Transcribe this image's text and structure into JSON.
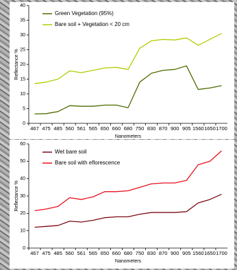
{
  "chart_data": [
    {
      "type": "line",
      "x_label": "Nanometers",
      "y_label": "Reflectance %",
      "categories": [
        "467",
        "475",
        "485",
        "560",
        "561",
        "565",
        "650",
        "660",
        "680",
        "750",
        "830",
        "870",
        "900",
        "905",
        "1560",
        "1650",
        "1700"
      ],
      "ylim": [
        0,
        40
      ],
      "yticks": [
        0,
        5,
        10,
        15,
        20,
        25,
        30,
        35,
        40
      ],
      "legend": "upper-left",
      "series": [
        {
          "name": "Green Vegetation (95%)",
          "color": "#4d6b00",
          "values": [
            3.2,
            3.3,
            4,
            6,
            5.8,
            5.8,
            6.2,
            6.2,
            5.3,
            14,
            17,
            18,
            18.3,
            19.5,
            11.5,
            12,
            12.8
          ]
        },
        {
          "name": "Bare soil + Vegetation < 20 cm",
          "color": "#b5cc00",
          "values": [
            13.5,
            14,
            15,
            17.8,
            17.2,
            18,
            18.8,
            19,
            18.3,
            25.5,
            28,
            28.5,
            28.3,
            29,
            26.5,
            28.5,
            30.5
          ]
        }
      ]
    },
    {
      "type": "line",
      "x_label": "Nanometers",
      "y_label": "Reflectance %",
      "categories": [
        "467",
        "475",
        "485",
        "560",
        "561",
        "565",
        "650",
        "660",
        "680",
        "750",
        "830",
        "870",
        "900",
        "905",
        "1560",
        "1650",
        "1700"
      ],
      "ylim": [
        0,
        60
      ],
      "yticks": [
        0,
        10,
        20,
        30,
        40,
        50,
        60
      ],
      "legend": "upper-left",
      "series": [
        {
          "name": "Wet bare soil",
          "color": "#7a0a14",
          "values": [
            12,
            12.5,
            13,
            15.5,
            15,
            16,
            17.5,
            18,
            18,
            19.5,
            20.5,
            20.5,
            20.5,
            21,
            26,
            28,
            31
          ]
        },
        {
          "name": "Bare soil with eflorescence",
          "color": "#e8101c",
          "values": [
            21.5,
            22.5,
            24,
            29,
            28,
            29.5,
            32.5,
            32.5,
            33,
            35,
            37,
            37.5,
            37.5,
            39,
            48,
            50,
            56
          ]
        }
      ]
    }
  ]
}
